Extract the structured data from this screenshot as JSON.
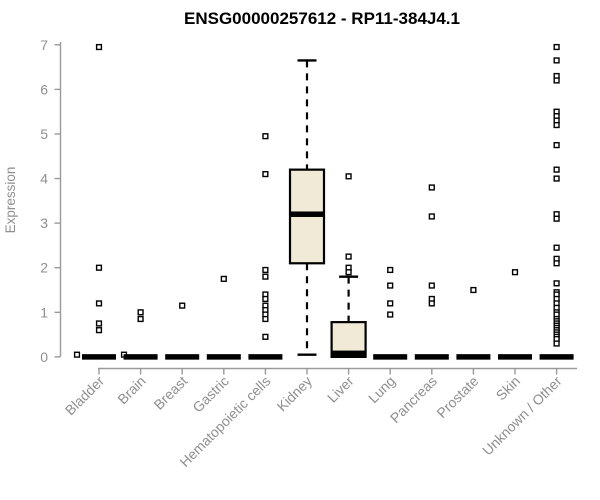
{
  "chart_data": {
    "type": "boxplot",
    "title": "ENSG00000257612 - RP11-384J4.1",
    "ylabel": "Expression",
    "ylim": [
      0,
      7
    ],
    "yticks": [
      0,
      1,
      2,
      3,
      4,
      5,
      6,
      7
    ],
    "grid": "off",
    "legend": "none",
    "categories": [
      "Bladder",
      "Brain",
      "Breast",
      "Gastric",
      "Hematopoietic cells",
      "Kidney",
      "Liver",
      "Lung",
      "Pancreas",
      "Prostate",
      "Skin",
      "Unknown / Other"
    ],
    "boxes": [
      {
        "category": "Bladder",
        "q1": 0,
        "median": 0,
        "q3": 0,
        "whisker_low": 0,
        "whisker_high": 0,
        "outliers": [
          6.95,
          2.0,
          1.2,
          0.75,
          0.6
        ],
        "extra_points": [
          {
            "value": 0.05,
            "dx": -22
          },
          {
            "value": 0.05,
            "dx": 25
          }
        ]
      },
      {
        "category": "Brain",
        "q1": 0,
        "median": 0,
        "q3": 0,
        "whisker_low": 0,
        "whisker_high": 0,
        "outliers": [
          1.0,
          0.85
        ],
        "extra_points": []
      },
      {
        "category": "Breast",
        "q1": 0,
        "median": 0,
        "q3": 0,
        "whisker_low": 0,
        "whisker_high": 0,
        "outliers": [
          1.15
        ],
        "extra_points": []
      },
      {
        "category": "Gastric",
        "q1": 0,
        "median": 0,
        "q3": 0,
        "whisker_low": 0,
        "whisker_high": 0,
        "outliers": [
          1.75
        ],
        "extra_points": []
      },
      {
        "category": "Hematopoietic cells",
        "q1": 0,
        "median": 0,
        "q3": 0,
        "whisker_low": 0,
        "whisker_high": 0,
        "outliers": [
          4.95,
          4.1,
          1.95,
          1.8,
          1.4,
          1.3,
          1.15,
          1.05,
          0.95,
          0.85,
          0.45
        ],
        "extra_points": []
      },
      {
        "category": "Kidney",
        "q1": 2.1,
        "median": 3.2,
        "q3": 4.2,
        "whisker_low": 0.05,
        "whisker_high": 6.65,
        "outliers": [],
        "extra_points": []
      },
      {
        "category": "Liver",
        "q1": 0,
        "median": 0.08,
        "q3": 0.78,
        "whisker_low": 0,
        "whisker_high": 1.8,
        "outliers": [
          4.05,
          2.25,
          2.0,
          1.9
        ],
        "extra_points": []
      },
      {
        "category": "Lung",
        "q1": 0,
        "median": 0,
        "q3": 0,
        "whisker_low": 0,
        "whisker_high": 0,
        "outliers": [
          1.95,
          1.6,
          1.2,
          0.95
        ],
        "extra_points": []
      },
      {
        "category": "Pancreas",
        "q1": 0,
        "median": 0,
        "q3": 0,
        "whisker_low": 0,
        "whisker_high": 0,
        "outliers": [
          3.8,
          3.15,
          1.6,
          1.3,
          1.2
        ],
        "extra_points": []
      },
      {
        "category": "Prostate",
        "q1": 0,
        "median": 0,
        "q3": 0,
        "whisker_low": 0,
        "whisker_high": 0,
        "outliers": [
          1.5
        ],
        "extra_points": []
      },
      {
        "category": "Skin",
        "q1": 0,
        "median": 0,
        "q3": 0,
        "whisker_low": 0,
        "whisker_high": 0,
        "outliers": [
          1.9
        ],
        "extra_points": []
      },
      {
        "category": "Unknown / Other",
        "q1": 0,
        "median": 0,
        "q3": 0,
        "whisker_low": 0,
        "whisker_high": 0,
        "outliers": [
          6.95,
          6.65,
          6.3,
          6.2,
          5.5,
          5.4,
          5.3,
          5.2,
          4.75,
          4.2,
          4.0,
          3.2,
          3.1,
          2.45,
          2.2,
          2.1,
          1.65,
          1.45,
          1.4,
          1.3,
          1.2,
          1.1,
          1.0,
          0.95,
          0.85,
          0.8,
          0.75,
          0.7,
          0.65,
          0.6,
          0.55,
          0.5,
          0.45,
          0.4,
          0.3
        ],
        "extra_points": []
      }
    ],
    "style": {
      "box_fill": "#f0ead6",
      "box_border": "#000000",
      "median_color": "#000000",
      "whisker_color": "#000000",
      "outlier_stroke": "#000000",
      "outlier_fill": "#ffffff",
      "axis_color": "#9a9a9a",
      "tick_label_color": "#8f8f8f",
      "title_color": "#000000"
    }
  }
}
